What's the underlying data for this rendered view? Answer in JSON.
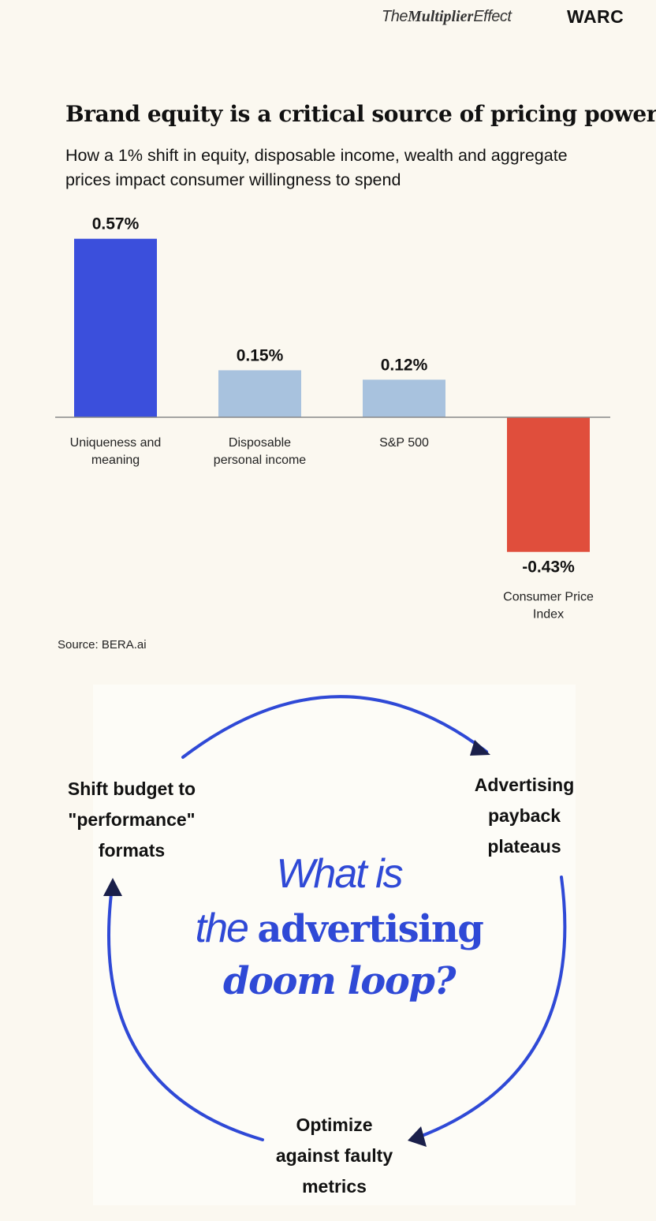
{
  "header": {
    "brand_prefix": "The",
    "brand_bold": "Multiplier",
    "brand_suffix": "Effect",
    "publisher": "WARC"
  },
  "chart_data": {
    "type": "bar",
    "title": "Brand equity is a critical source of pricing power",
    "subtitle": "How a 1% shift in equity, disposable income, wealth and aggregate prices impact consumer willingness to spend",
    "categories": [
      [
        "Uniqueness and",
        "meaning"
      ],
      [
        "Disposable",
        "personal income"
      ],
      [
        "S&P 500"
      ],
      [
        "Consumer Price",
        "Index"
      ]
    ],
    "values": [
      0.57,
      0.15,
      0.12,
      -0.43
    ],
    "value_labels": [
      "0.57%",
      "0.15%",
      "0.12%",
      "-0.43%"
    ],
    "colors": [
      "#3b4fdc",
      "#a8c2de",
      "#a8c2de",
      "#e04e3c"
    ],
    "baseline_color": "#888888",
    "ylim": [
      -0.43,
      0.57
    ],
    "xlabel": "",
    "ylabel": "",
    "grid": false,
    "legend": "none",
    "source": "Source: BERA.ai"
  },
  "doom_loop": {
    "nodes": {
      "shift": [
        "Shift budget to",
        "\"performance\"",
        "formats"
      ],
      "payback": [
        "Advertising",
        "payback",
        "plateaus"
      ],
      "optimize": [
        "Optimize",
        "against faulty",
        "metrics"
      ]
    },
    "question": {
      "line1": "What is",
      "line2_light": "the ",
      "line2_bold": "advertising",
      "line3": "doom loop?"
    },
    "accent_color": "#2f49d6",
    "arrowhead_color": "#1a1f4a"
  }
}
